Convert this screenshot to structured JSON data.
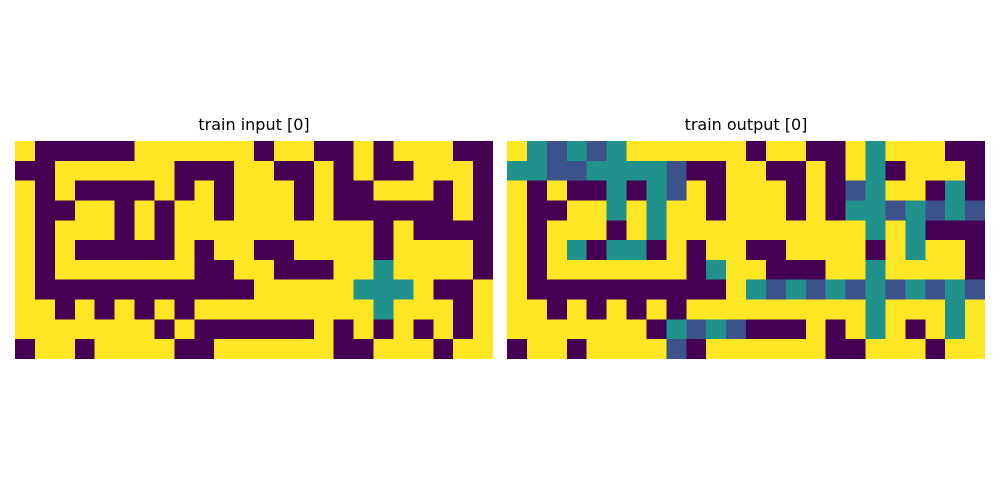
{
  "palette": {
    "0": "#440154",
    "1": "#fde725",
    "2": "#3b528b",
    "3": "#21918c"
  },
  "panels": [
    {
      "title": "train input [0]",
      "rows": [
        "100000111111011001011100",
        "001111110001100101001110",
        "101000010101110100111010",
        "100110101101110100000010",
        "101110101111111111010000",
        "101000001011001111011110",
        "101111111001100011311110",
        "100000000000111113331001",
        "110101010111111111311101",
        "111111101000000101010101",
        "011011110011111100111011"
      ]
    },
    {
      "title": "train output [0]",
      "rows": [
        "132323111111011001311100",
        "332233332001100101301110",
        "101003032101110102311030",
        "100113131101110103323232",
        "101110131111111111313000",
        "101303301011001111013110",
        "101111111031100011311110",
        "100000000001323232323232",
        "110101010111111111311131",
        "111111103232000101310131",
        "011011112011111100111011"
      ]
    }
  ]
}
